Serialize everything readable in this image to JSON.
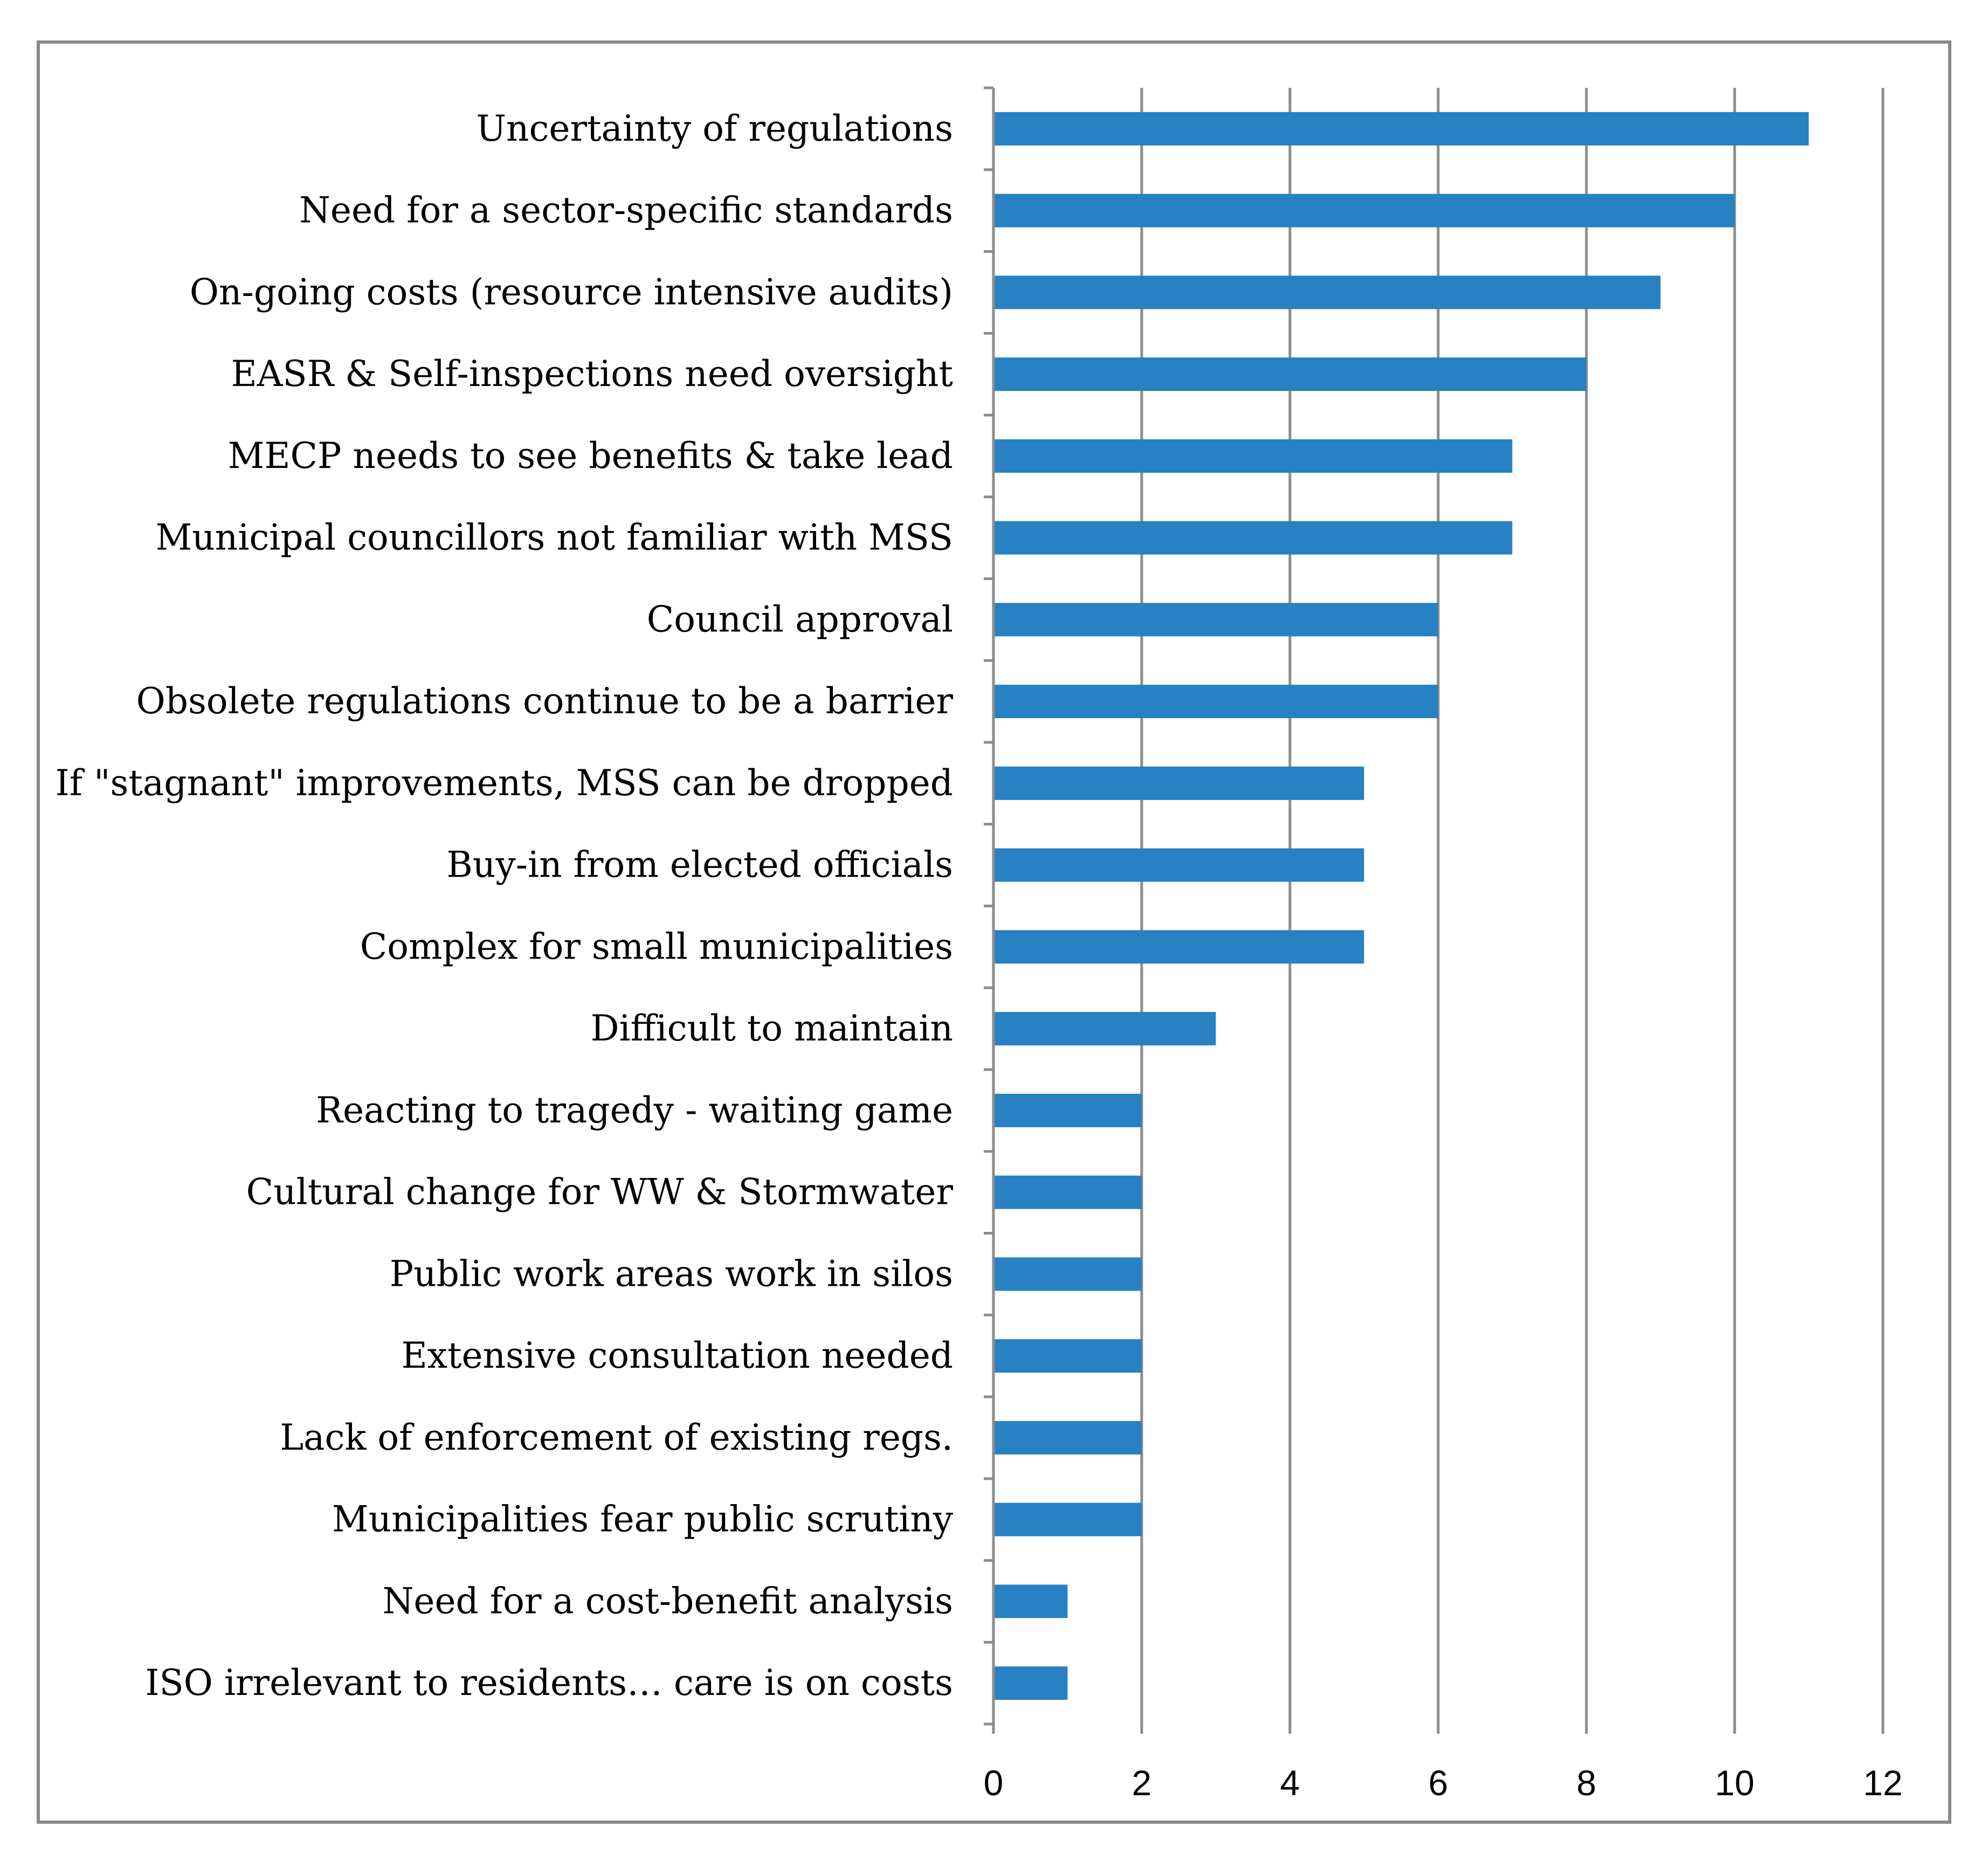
{
  "chart_data": {
    "type": "bar",
    "orientation": "horizontal",
    "title": "",
    "xlabel": "",
    "ylabel": "",
    "xlim": [
      0,
      12
    ],
    "x_ticks": [
      "0",
      "2",
      "4",
      "6",
      "8",
      "10",
      "12"
    ],
    "grid": true,
    "legend": "none",
    "bar_color": "#2781c2",
    "grid_color": "#8c8c8c",
    "categories": [
      "Uncertainty of regulations",
      "Need for a sector-specific standards",
      "On-going costs (resource intensive audits)",
      "EASR & Self-inspections need oversight",
      "MECP needs to see benefits & take lead",
      "Municipal councillors not familiar with MSS",
      "Council approval",
      "Obsolete regulations continue to be a barrier",
      "If \"stagnant\" improvements, MSS can be dropped",
      "Buy-in from elected officials",
      "Complex for small municipalities",
      "Difficult to maintain",
      "Reacting to tragedy - waiting game",
      "Cultural change for WW & Stormwater",
      "Public work areas work in silos",
      "Extensive consultation needed",
      "Lack of enforcement of existing regs.",
      "Municipalities fear public scrutiny",
      "Need for a cost-benefit analysis",
      "ISO irrelevant to residents… care is on costs"
    ],
    "values": [
      11,
      10,
      9,
      8,
      7,
      7,
      6,
      6,
      5,
      5,
      5,
      3,
      2,
      2,
      2,
      2,
      2,
      2,
      1,
      1
    ]
  }
}
